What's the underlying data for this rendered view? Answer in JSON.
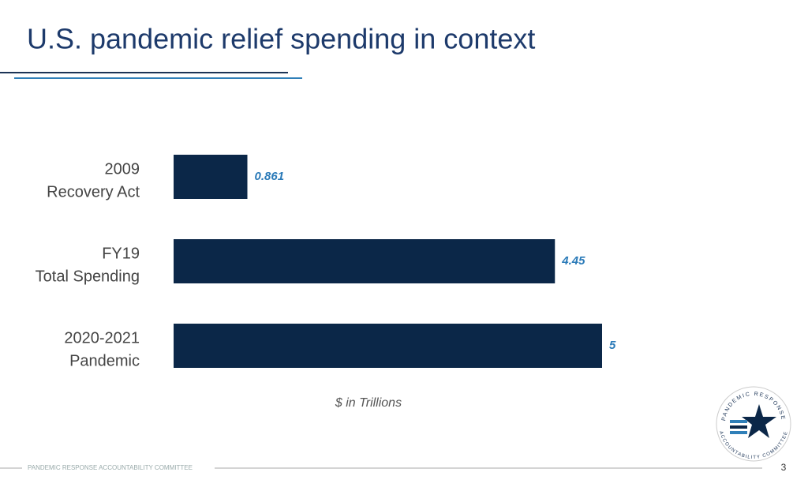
{
  "title": "U.S. pandemic relief spending in context",
  "chart_data": {
    "type": "hbar",
    "categories": [
      [
        "2009",
        "Recovery Act"
      ],
      [
        "FY19",
        "Total Spending"
      ],
      [
        "2020-2021",
        "Pandemic"
      ]
    ],
    "values": [
      0.861,
      4.45,
      5
    ],
    "color": "#0b2748",
    "label_color": "#2a7ab8",
    "xlabel": "$ in Trillions"
  },
  "footer": {
    "text": "PANDEMIC RESPONSE ACCOUNTABILITY COMMITTEE",
    "page": "3"
  },
  "logo": {
    "top": "PANDEMIC RESPONSE",
    "bottom": "ACCOUNTABILITY COMMITTEE"
  }
}
